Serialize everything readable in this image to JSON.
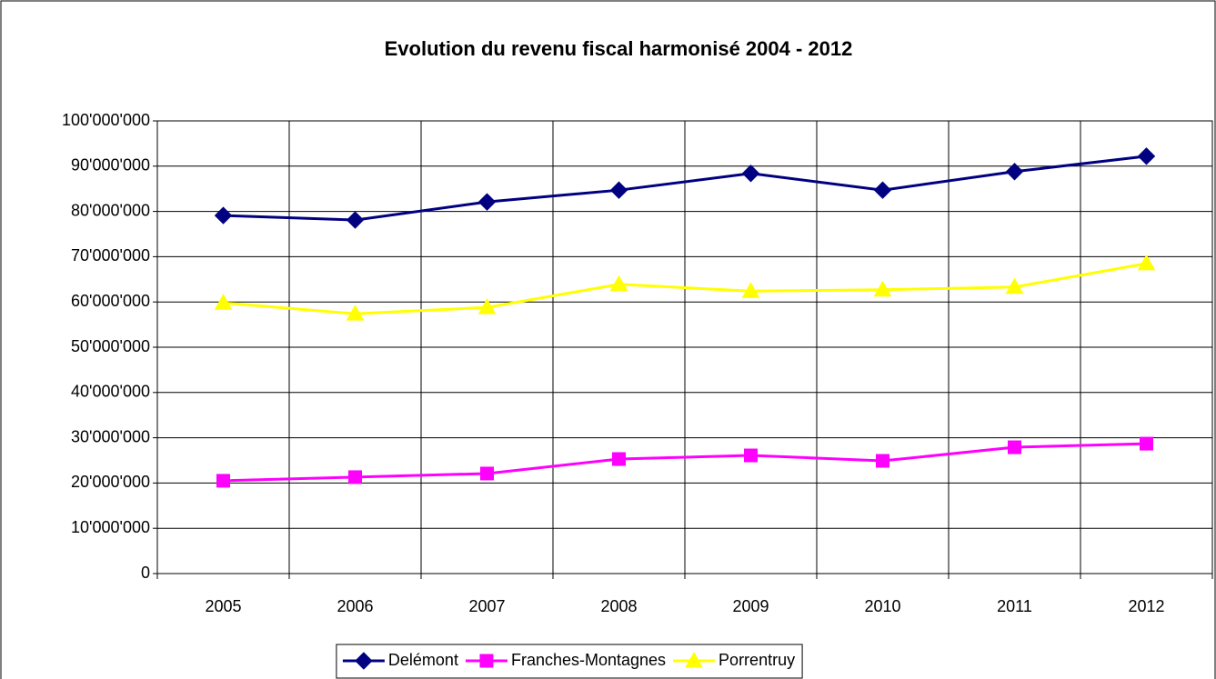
{
  "chart_data": {
    "type": "line",
    "title": "Evolution du revenu fiscal harmonisé 2004 - 2012",
    "categories": [
      "2005",
      "2006",
      "2007",
      "2008",
      "2009",
      "2010",
      "2011",
      "2012"
    ],
    "series": [
      {
        "name": "Delémont",
        "color": "#000080",
        "marker": "diamond",
        "values": [
          79100000,
          78100000,
          82100000,
          84700000,
          88400000,
          84700000,
          88800000,
          92200000
        ]
      },
      {
        "name": "Franches-Montagnes",
        "color": "#ff00ff",
        "marker": "square",
        "values": [
          20500000,
          21300000,
          22100000,
          25300000,
          26100000,
          24900000,
          27900000,
          28700000
        ]
      },
      {
        "name": "Porrentruy",
        "color": "#ffff00",
        "marker": "triangle",
        "values": [
          59800000,
          57400000,
          58800000,
          63900000,
          62400000,
          62700000,
          63300000,
          68500000
        ]
      }
    ],
    "ylim": [
      0,
      100000000
    ],
    "yticks": [
      0,
      {
        "value": 10000000,
        "label": "10'000'000"
      },
      {
        "value": 20000000,
        "label": "20'000'000"
      },
      {
        "value": 30000000,
        "label": "30'000'000"
      },
      {
        "value": 40000000,
        "label": "40'000'000"
      },
      {
        "value": 50000000,
        "label": "50'000'000"
      },
      {
        "value": 60000000,
        "label": "60'000'000"
      },
      {
        "value": 70000000,
        "label": "70'000'000"
      },
      {
        "value": 80000000,
        "label": "80'000'000"
      },
      {
        "value": 90000000,
        "label": "90'000'000"
      },
      {
        "value": 100000000,
        "label": "100'000'000"
      }
    ],
    "grid": true,
    "legend": "bottom"
  }
}
